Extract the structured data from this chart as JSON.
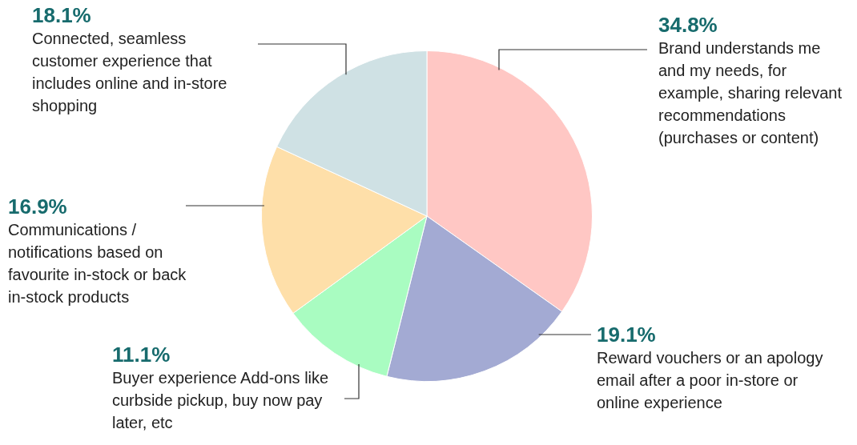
{
  "chart_data": {
    "type": "pie",
    "categories": [
      "Brand understands me and my needs, for example, sharing relevant recommendations (purchases or content)",
      "Reward vouchers or an apology email after a poor in-store or online experience",
      "Buyer experience Add-ons like curbside pickup, buy now pay later, etc",
      "Communications / notifications based on favourite in-stock or back in-stock products",
      "Connected, seamless customer experience that includes online and in-store shopping"
    ],
    "values": [
      34.8,
      19.1,
      11.1,
      16.9,
      18.1
    ],
    "value_labels": [
      "34.8%",
      "19.1%",
      "11.1%",
      "16.9%",
      "18.1%"
    ],
    "colors": [
      "#ffc7c4",
      "#a3aad3",
      "#a9fcc1",
      "#fedfa9",
      "#cfe1e4"
    ],
    "legend": false
  }
}
